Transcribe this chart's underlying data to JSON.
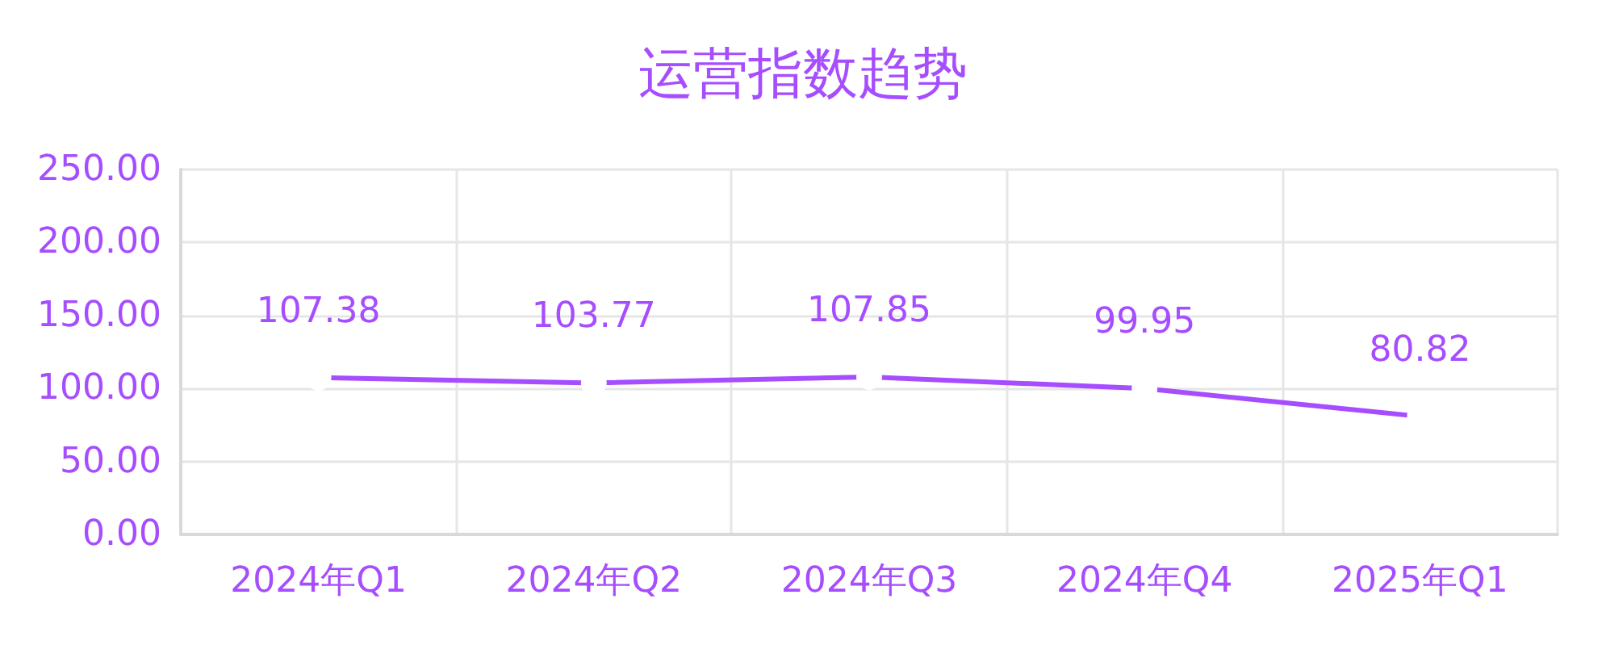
{
  "chart_data": {
    "type": "line",
    "title": "运营指数趋势",
    "categories": [
      "2024年Q1",
      "2024年Q2",
      "2024年Q3",
      "2024年Q4",
      "2025年Q1"
    ],
    "series": [
      {
        "color": "#a64dff",
        "values": [
          107.38,
          103.77,
          107.85,
          99.95,
          80.82
        ]
      }
    ],
    "ylim": [
      0,
      250
    ],
    "yticks": [
      {
        "value": 0,
        "label": "0.00"
      },
      {
        "value": 50,
        "label": "50.00"
      },
      {
        "value": 100,
        "label": "100.00"
      },
      {
        "value": 150,
        "label": "150.00"
      },
      {
        "value": 200,
        "label": "200.00"
      },
      {
        "value": 250,
        "label": "250.00"
      }
    ],
    "grid": true,
    "marker": "circle",
    "line_style": "solid",
    "data_labels": true
  }
}
